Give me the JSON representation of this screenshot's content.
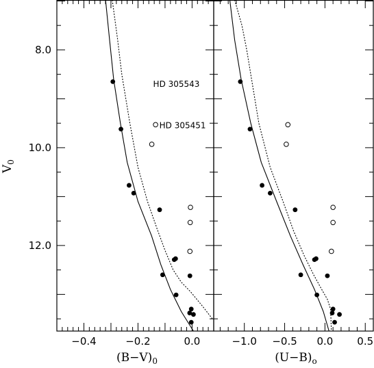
{
  "chart_data": [
    {
      "type": "scatter",
      "panel": "left",
      "title": "",
      "xlabel": "(B−V)",
      "xlabel_sub": "0",
      "ylabel": "V",
      "ylabel_sub": "0",
      "xlim": [
        -0.5,
        0.08
      ],
      "ylim": [
        13.75,
        6.98
      ],
      "y_inverted": true,
      "x_ticks": [
        -0.4,
        -0.3,
        -0.2,
        -0.1,
        0.0
      ],
      "x_tick_labels": [
        "−0.4",
        "",
        "−0.2",
        "",
        "0.0"
      ],
      "y_ticks": [
        8.0,
        10.0,
        12.0
      ],
      "y_tick_labels": [
        "8.0",
        "10.0",
        "12.0"
      ],
      "series": [
        {
          "marker": "filled-circle",
          "points": [
            [
              -0.293,
              8.65
            ],
            [
              -0.263,
              9.62
            ],
            [
              -0.233,
              10.77
            ],
            [
              -0.216,
              10.93
            ],
            [
              -0.12,
              11.27
            ],
            [
              -0.066,
              12.29
            ],
            [
              -0.061,
              12.27
            ],
            [
              -0.109,
              12.6
            ],
            [
              -0.008,
              12.62
            ],
            [
              -0.059,
              13.01
            ],
            [
              -0.003,
              13.3
            ],
            [
              -0.009,
              13.38
            ],
            [
              0.005,
              13.41
            ],
            [
              -0.003,
              13.57
            ]
          ]
        },
        {
          "marker": "open-circle",
          "points": [
            [
              -0.135,
              9.53
            ],
            [
              -0.149,
              9.93
            ],
            [
              -0.006,
              11.22
            ],
            [
              -0.007,
              11.53
            ],
            [
              -0.008,
              12.12
            ]
          ]
        },
        {
          "style": "solid-line",
          "points": [
            [
              -0.32,
              6.98
            ],
            [
              -0.305,
              7.8
            ],
            [
              -0.29,
              8.6
            ],
            [
              -0.265,
              9.5
            ],
            [
              -0.24,
              10.3
            ],
            [
              -0.2,
              11.1
            ],
            [
              -0.15,
              11.8
            ],
            [
              -0.115,
              12.4
            ],
            [
              -0.08,
              12.9
            ],
            [
              -0.04,
              13.35
            ],
            [
              0.005,
              13.75
            ]
          ]
        },
        {
          "style": "dotted-line",
          "points": [
            [
              -0.295,
              6.98
            ],
            [
              -0.275,
              7.8
            ],
            [
              -0.26,
              8.5
            ],
            [
              -0.23,
              9.5
            ],
            [
              -0.2,
              10.4
            ],
            [
              -0.165,
              11.1
            ],
            [
              -0.13,
              11.65
            ],
            [
              -0.1,
              12.1
            ],
            [
              -0.07,
              12.5
            ],
            [
              -0.04,
              12.75
            ],
            [
              -0.005,
              12.95
            ],
            [
              0.04,
              13.25
            ],
            [
              0.075,
              13.5
            ]
          ]
        }
      ],
      "annotations": [
        {
          "text": "HD 305543",
          "x": -0.144,
          "y": 8.7
        },
        {
          "text": "HD 305451",
          "x": -0.121,
          "y": 9.55
        }
      ]
    },
    {
      "type": "scatter",
      "panel": "right",
      "title": "",
      "xlabel": "(U−B)",
      "xlabel_sub": "o",
      "ylim": [
        13.75,
        6.98
      ],
      "xlim": [
        -1.38,
        0.6
      ],
      "y_inverted": true,
      "x_ticks": [
        -1.0,
        -0.5,
        0.0,
        0.5
      ],
      "x_tick_labels": [
        "−1.0",
        "−0.5",
        "0.0",
        "0.5"
      ],
      "series": [
        {
          "marker": "filled-circle",
          "points": [
            [
              -1.05,
              8.65
            ],
            [
              -0.93,
              9.62
            ],
            [
              -0.78,
              10.77
            ],
            [
              -0.68,
              10.93
            ],
            [
              -0.37,
              11.27
            ],
            [
              -0.13,
              12.29
            ],
            [
              -0.11,
              12.27
            ],
            [
              -0.3,
              12.6
            ],
            [
              0.03,
              12.62
            ],
            [
              -0.1,
              13.01
            ],
            [
              0.1,
              13.3
            ],
            [
              0.09,
              13.38
            ],
            [
              0.18,
              13.41
            ],
            [
              0.12,
              13.57
            ]
          ]
        },
        {
          "marker": "open-circle",
          "points": [
            [
              -0.46,
              9.53
            ],
            [
              -0.48,
              9.93
            ],
            [
              0.1,
              11.22
            ],
            [
              0.1,
              11.53
            ],
            [
              0.08,
              12.12
            ]
          ]
        },
        {
          "style": "solid-line",
          "points": [
            [
              -1.18,
              6.98
            ],
            [
              -1.12,
              7.8
            ],
            [
              -1.04,
              8.6
            ],
            [
              -0.92,
              9.5
            ],
            [
              -0.79,
              10.3
            ],
            [
              -0.6,
              11.1
            ],
            [
              -0.43,
              11.8
            ],
            [
              -0.27,
              12.4
            ],
            [
              -0.13,
              12.9
            ],
            [
              -0.02,
              13.35
            ],
            [
              0.05,
              13.75
            ]
          ]
        },
        {
          "style": "dotted-line",
          "points": [
            [
              -1.12,
              6.98
            ],
            [
              -1.03,
              7.5
            ],
            [
              -0.97,
              8.0
            ],
            [
              -0.92,
              8.5
            ],
            [
              -0.82,
              9.5
            ],
            [
              -0.68,
              10.4
            ],
            [
              -0.52,
              11.1
            ],
            [
              -0.39,
              11.7
            ],
            [
              -0.26,
              12.2
            ],
            [
              -0.14,
              12.6
            ],
            [
              -0.04,
              12.9
            ],
            [
              0.03,
              13.1
            ],
            [
              0.07,
              13.3
            ],
            [
              0.08,
              13.75
            ]
          ]
        }
      ]
    }
  ]
}
